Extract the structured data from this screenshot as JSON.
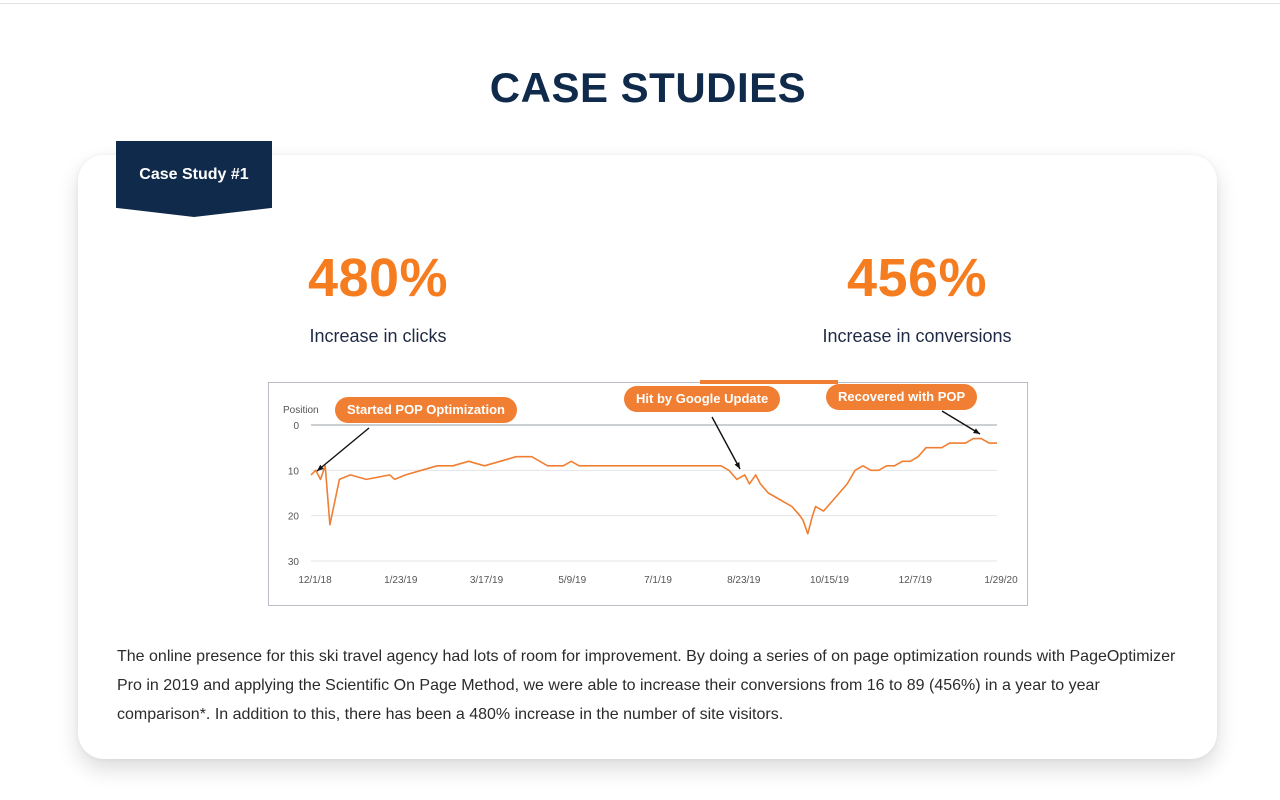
{
  "page": {
    "title": "CASE STUDIES"
  },
  "case_study": {
    "badge": "Case Study #1",
    "stats": [
      {
        "value": "480%",
        "label": "Increase in clicks"
      },
      {
        "value": "456%",
        "label": "Increase in conversions"
      }
    ],
    "description": "The online presence for this ski travel agency had lots of room for improvement. By doing a series of on page optimization rounds with PageOptimizer Pro in 2019 and applying the Scientific On Page Method, we were able to increase their conversions from 16 to 89 (456%) in a year to year comparison*. In addition to this, there has been a 480% increase in the number of site visitors."
  },
  "colors": {
    "navy": "#0f2a4a",
    "orange": "#f57c1f",
    "line": "#f07f33"
  },
  "chart_data": {
    "type": "line",
    "ylabel": "Position",
    "y_inverted": true,
    "ylim": [
      0,
      30
    ],
    "yticks": [
      0,
      10,
      20,
      30
    ],
    "xticks": [
      "12/1/18",
      "1/23/19",
      "3/17/19",
      "5/9/19",
      "7/1/19",
      "8/23/19",
      "10/15/19",
      "12/7/19",
      "1/29/20"
    ],
    "grid": true,
    "annotations": [
      {
        "text": "Started POP Optimization",
        "x": "12/1/18"
      },
      {
        "text": "Hit by Google Update",
        "x": "8/23/19"
      },
      {
        "text": "Recovered with POP",
        "x": "1/29/20"
      }
    ],
    "series": [
      {
        "x": [
          0,
          3,
          6,
          9,
          12,
          18,
          25,
          35,
          50,
          53,
          60,
          70,
          80,
          90,
          100,
          110,
          120,
          130,
          140,
          150,
          160,
          165,
          170,
          175,
          180,
          190,
          200,
          210,
          220,
          230,
          240,
          250,
          260,
          265,
          270,
          275,
          278,
          282,
          285,
          290,
          295,
          300,
          305,
          310,
          312,
          315,
          318,
          320,
          325,
          330,
          335,
          340,
          345,
          350,
          355,
          360,
          365,
          370,
          375,
          380,
          385,
          390,
          395,
          400,
          405,
          410,
          415,
          420,
          425,
          430,
          435
        ],
        "values": [
          11,
          10,
          12,
          9,
          22,
          12,
          11,
          12,
          11,
          12,
          11,
          10,
          9,
          9,
          8,
          9,
          8,
          7,
          7,
          9,
          9,
          8,
          9,
          9,
          9,
          9,
          9,
          9,
          9,
          9,
          9,
          9,
          9,
          10,
          12,
          11,
          13,
          11,
          13,
          15,
          16,
          17,
          18,
          20,
          21,
          24,
          20,
          18,
          19,
          17,
          15,
          13,
          10,
          9,
          10,
          10,
          9,
          9,
          8,
          8,
          7,
          5,
          5,
          5,
          4,
          4,
          4,
          3,
          3,
          4,
          4
        ]
      }
    ]
  }
}
